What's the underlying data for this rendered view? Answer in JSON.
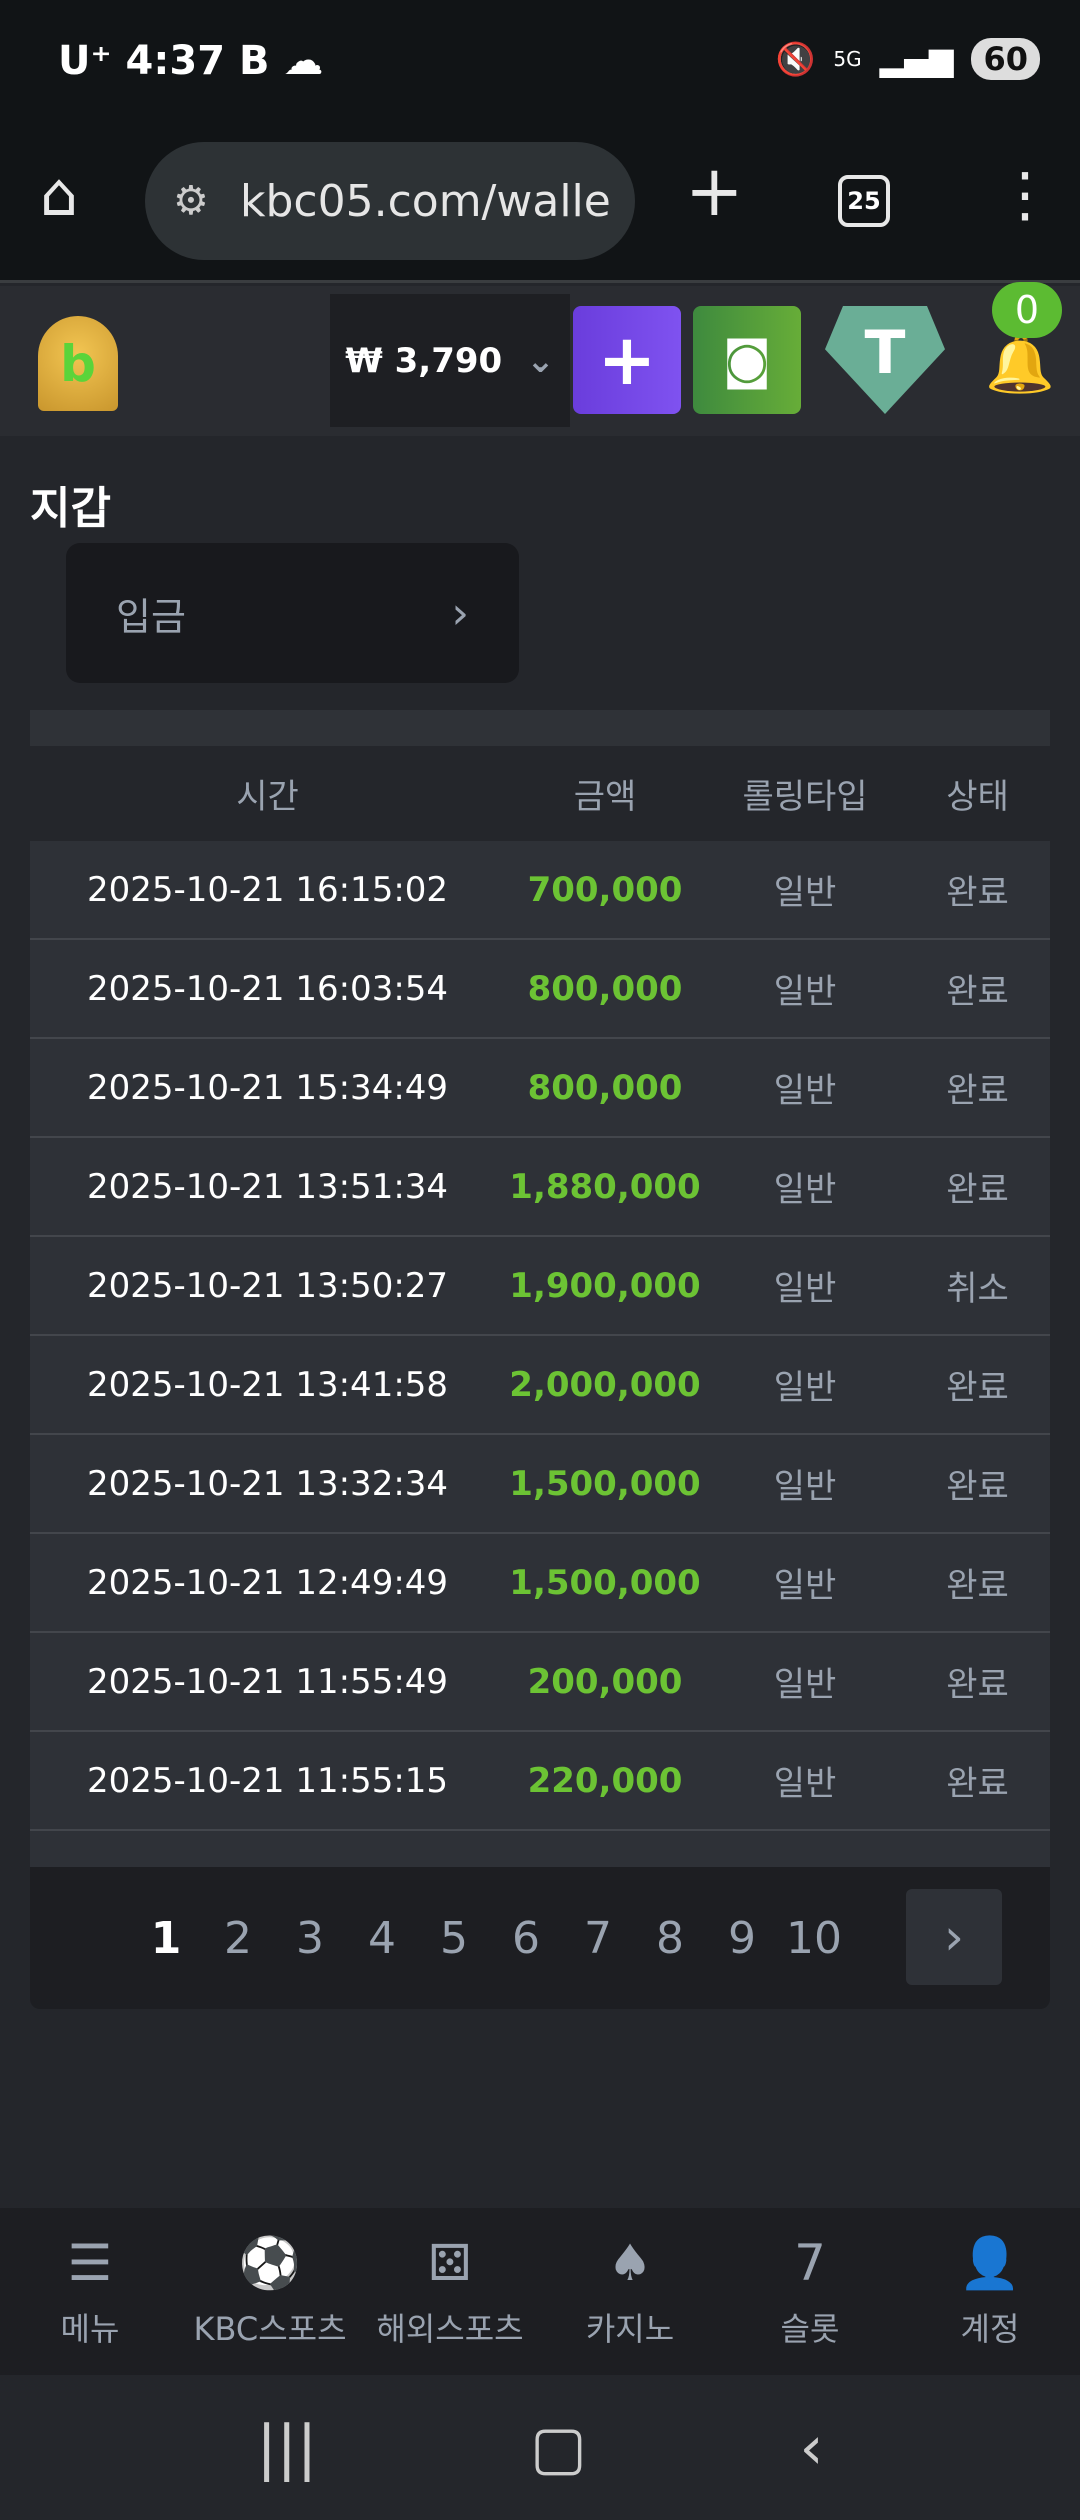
{
  "status_bar": {
    "carrier": "U⁺",
    "time": "4:37",
    "network": "5G",
    "battery": "60"
  },
  "browser": {
    "url": "kbc05.com/walle",
    "tab_count": "25"
  },
  "header": {
    "balance": "₩ 3,790",
    "notification_count": "0",
    "colors": {
      "deposit": "#7b4fe8",
      "vault": "#4f9a35",
      "tether": "#6aae96",
      "badge": "#5cbb32"
    }
  },
  "page": {
    "title": "지갑",
    "deposit_label": "입금"
  },
  "table": {
    "columns": [
      "시간",
      "금액",
      "롤링타입",
      "상태"
    ],
    "rows": [
      [
        "2025-10-21 16:15:02",
        "700,000",
        "일반",
        "완료"
      ],
      [
        "2025-10-21 16:03:54",
        "800,000",
        "일반",
        "완료"
      ],
      [
        "2025-10-21 15:34:49",
        "800,000",
        "일반",
        "완료"
      ],
      [
        "2025-10-21 13:51:34",
        "1,880,000",
        "일반",
        "완료"
      ],
      [
        "2025-10-21 13:50:27",
        "1,900,000",
        "일반",
        "취소"
      ],
      [
        "2025-10-21 13:41:58",
        "2,000,000",
        "일반",
        "완료"
      ],
      [
        "2025-10-21 13:32:34",
        "1,500,000",
        "일반",
        "완료"
      ],
      [
        "2025-10-21 12:49:49",
        "1,500,000",
        "일반",
        "완료"
      ],
      [
        "2025-10-21 11:55:49",
        "200,000",
        "일반",
        "완료"
      ],
      [
        "2025-10-21 11:55:15",
        "220,000",
        "일반",
        "완료"
      ]
    ],
    "amount_color": "#6cc334"
  },
  "pagination": {
    "pages": [
      "1",
      "2",
      "3",
      "4",
      "5",
      "6",
      "7",
      "8",
      "9",
      "10"
    ],
    "current": "1"
  },
  "bottom_nav": [
    {
      "label": "메뉴",
      "icon": "menu-search-icon"
    },
    {
      "label": "KBC스포츠",
      "icon": "soccer-ball-icon"
    },
    {
      "label": "해외스포츠",
      "icon": "dice-icon"
    },
    {
      "label": "카지노",
      "icon": "cards-icon"
    },
    {
      "label": "슬롯",
      "icon": "slot-seven-icon"
    },
    {
      "label": "계정",
      "icon": "account-coin-icon"
    }
  ]
}
